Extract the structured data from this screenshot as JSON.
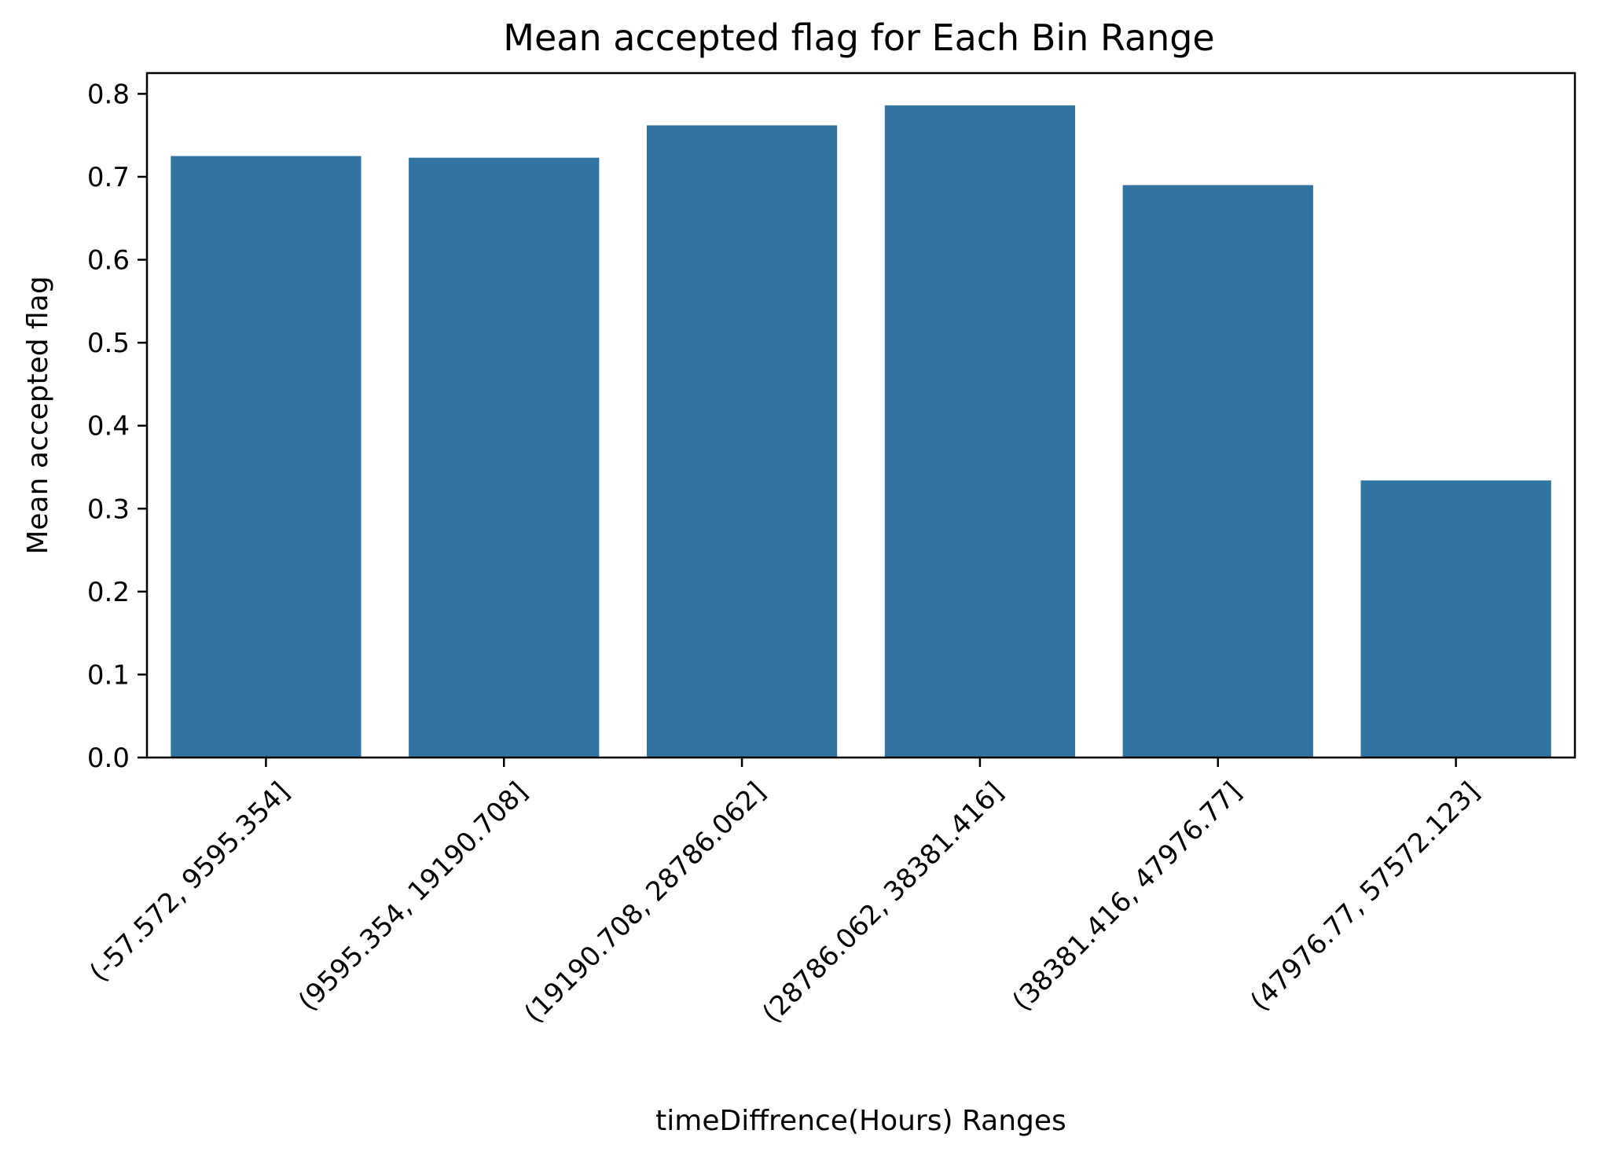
{
  "chart_data": {
    "type": "bar",
    "title": "Mean accepted flag for Each Bin Range",
    "xlabel": "timeDiffrence(Hours) Ranges",
    "ylabel": "Mean accepted flag",
    "categories": [
      "(-57.572, 9595.354]",
      "(9595.354, 19190.708]",
      "(19190.708, 28786.062]",
      "(28786.062, 38381.416]",
      "(38381.416, 47976.77]",
      "(47976.77, 57572.123]"
    ],
    "values": [
      0.725,
      0.723,
      0.762,
      0.786,
      0.69,
      0.334
    ],
    "ylim": [
      0,
      0.825
    ],
    "yticks": [
      0.0,
      0.1,
      0.2,
      0.3,
      0.4,
      0.5,
      0.6,
      0.7,
      0.8
    ],
    "ytick_labels": [
      "0.0",
      "0.1",
      "0.2",
      "0.3",
      "0.4",
      "0.5",
      "0.6",
      "0.7",
      "0.8"
    ],
    "bar_color": "#3274a1",
    "grid": false,
    "legend": "none"
  }
}
